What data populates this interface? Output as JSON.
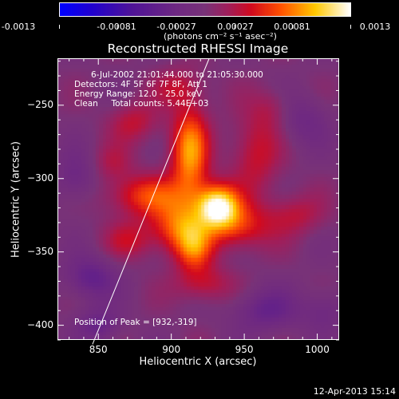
{
  "colorbar": {
    "tick_labels": [
      "-0.0013",
      "-0.00081",
      "-0.00027",
      "0.00027",
      "0.00081",
      "0.0013"
    ],
    "units_label": "(photons cm⁻² s⁻¹ asec⁻²)"
  },
  "chart_data": {
    "type": "heatmap",
    "title": "Reconstructed RHESSI Image",
    "xlabel": "Heliocentric X (arcsec)",
    "ylabel": "Heliocentric Y (arcsec)",
    "xlim": [
      822,
      1015
    ],
    "ylim": [
      -410,
      -218
    ],
    "x_ticks": [
      850,
      900,
      950,
      1000
    ],
    "y_ticks": [
      -250,
      -300,
      -350,
      -400
    ],
    "color_range": [
      -0.0013,
      0.0013
    ],
    "peak": [
      932,
      -319
    ],
    "limb_line": [
      [
        846,
        -413
      ],
      [
        926,
        -218
      ]
    ],
    "blobs": [
      {
        "x": 932,
        "y": -319,
        "amp": 1.0,
        "sx": 10,
        "sy": 10
      },
      {
        "x": 913,
        "y": -283,
        "amp": 0.72,
        "sx": 9,
        "sy": 22
      },
      {
        "x": 905,
        "y": -333,
        "amp": 0.55,
        "sx": 13,
        "sy": 12
      },
      {
        "x": 916,
        "y": -348,
        "amp": 0.5,
        "sx": 9,
        "sy": 11
      },
      {
        "x": 945,
        "y": -333,
        "amp": 0.45,
        "sx": 16,
        "sy": 11
      },
      {
        "x": 885,
        "y": -312,
        "amp": 0.48,
        "sx": 20,
        "sy": 10
      },
      {
        "x": 958,
        "y": -283,
        "amp": 0.32,
        "sx": 12,
        "sy": 20
      },
      {
        "x": 875,
        "y": -262,
        "amp": 0.28,
        "sx": 12,
        "sy": 10
      },
      {
        "x": 905,
        "y": -238,
        "amp": 0.25,
        "sx": 12,
        "sy": 9
      },
      {
        "x": 872,
        "y": -342,
        "amp": 0.28,
        "sx": 12,
        "sy": 9
      },
      {
        "x": 922,
        "y": -372,
        "amp": 0.3,
        "sx": 14,
        "sy": 9
      },
      {
        "x": 985,
        "y": -325,
        "amp": 0.26,
        "sx": 14,
        "sy": 10
      },
      {
        "x": 970,
        "y": -252,
        "amp": 0.18,
        "sx": 10,
        "sy": 10
      },
      {
        "x": 860,
        "y": -290,
        "amp": 0.2,
        "sx": 10,
        "sy": 9
      },
      {
        "x": 845,
        "y": -368,
        "amp": -0.35,
        "sx": 12,
        "sy": 10
      },
      {
        "x": 850,
        "y": -400,
        "amp": -0.3,
        "sx": 10,
        "sy": 8
      },
      {
        "x": 835,
        "y": -300,
        "amp": -0.25,
        "sx": 10,
        "sy": 12
      },
      {
        "x": 990,
        "y": -260,
        "amp": -0.22,
        "sx": 12,
        "sy": 12
      },
      {
        "x": 965,
        "y": -390,
        "amp": -0.3,
        "sx": 16,
        "sy": 10
      },
      {
        "x": 1005,
        "y": -390,
        "amp": -0.2,
        "sx": 10,
        "sy": 10
      }
    ]
  },
  "overlay": {
    "line1": "6-Jul-2002 21:01:44.000 to 21:05:30.000",
    "line2": "Detectors: 4F 5F 6F 7F 8F, Att 1",
    "line3": "Energy Range: 12.0 - 25.0 keV",
    "line4": "Clean     Total counts: 5.44E+03",
    "peak_text": "Position of Peak = [932,-319]"
  },
  "footer": {
    "timestamp": "12-Apr-2013 15:14"
  }
}
